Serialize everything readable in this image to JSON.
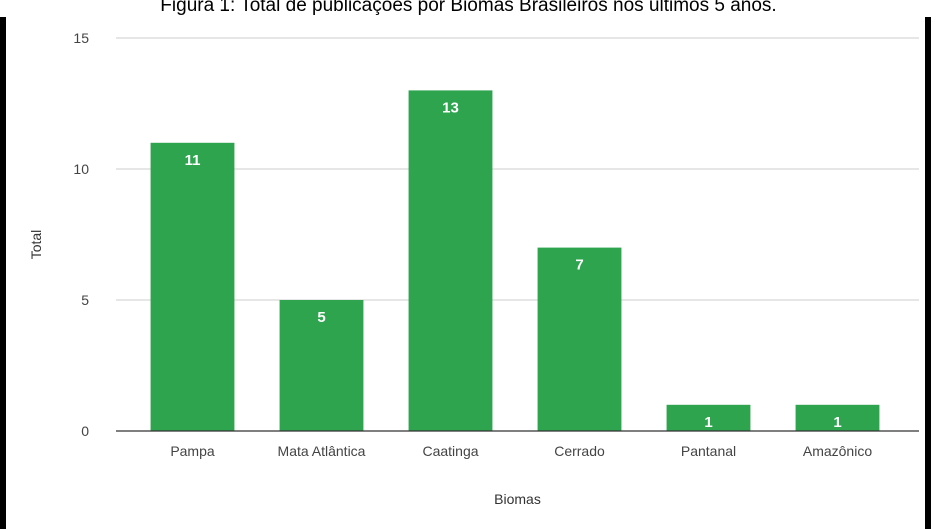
{
  "caption": "Figura 1: Total de publicações por Biomas Brasileiros nos últimos 5 anos.",
  "chart_data": {
    "type": "bar",
    "title": "",
    "xlabel": "Biomas",
    "ylabel": "Total",
    "categories": [
      "Pampa",
      "Mata Atlântica",
      "Caatinga",
      "Cerrado",
      "Pantanal",
      "Amazônico"
    ],
    "values": [
      11,
      5,
      13,
      7,
      1,
      1
    ],
    "ylim": [
      0,
      15
    ],
    "yticks": [
      "0",
      "5",
      "10",
      "15"
    ],
    "grid": true,
    "legend": "none",
    "data_labels": true,
    "colors": {
      "bar": "#2ea44f",
      "grid": "#cccccc",
      "axis": "#333333"
    }
  }
}
